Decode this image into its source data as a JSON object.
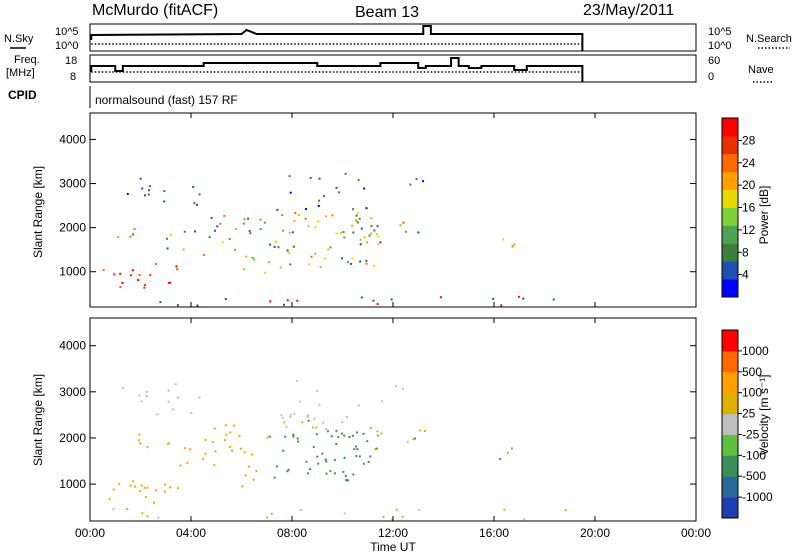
{
  "header": {
    "station": "McMurdo (fitACF)",
    "beam": "Beam 13",
    "date": "23/May/2011"
  },
  "nsky_panel": {
    "left_label": "N.Sky",
    "right_label": "N.Search",
    "left_ticks": [
      "10^5",
      "10^0"
    ],
    "right_ticks": [
      "10^5",
      "10^0"
    ]
  },
  "freq_panel": {
    "left_label_1": "Freq.",
    "left_label_2": "[MHz]",
    "right_label": "Nave",
    "left_ticks": [
      "18",
      "8"
    ],
    "right_ticks": [
      "60",
      "0"
    ]
  },
  "cpid": {
    "label": "CPID",
    "value": "normalsound (fast) 157 RF"
  },
  "colors": {
    "power": [
      "#0000ff",
      "#1f4fb0",
      "#3b7f3b",
      "#4fa24f",
      "#7fd13b",
      "#e8d800",
      "#ff9f00",
      "#ff6a00",
      "#e83000",
      "#ff0000"
    ],
    "velocity": [
      "#1f3fb0",
      "#2a6a9a",
      "#3b8f5a",
      "#5fbf3f",
      "#bfbfbf",
      "#e0b000",
      "#ff9f00",
      "#ff6a00",
      "#ff0000"
    ]
  },
  "chart_data": [
    {
      "type": "heatmap",
      "name": "power",
      "ylabel": "Slant Range [km]",
      "yticks": [
        "4000",
        "3000",
        "2000",
        "1000"
      ],
      "colorbar_label": "Power [dB]",
      "colorbar_ticks": [
        "28",
        "24",
        "20",
        "16",
        "12",
        "8",
        "4"
      ],
      "ylim": [
        200,
        4600
      ],
      "clim": [
        0,
        32
      ]
    },
    {
      "type": "heatmap",
      "name": "velocity",
      "ylabel": "Slant Range [km]",
      "yticks": [
        "4000",
        "3000",
        "2000",
        "1000"
      ],
      "colorbar_label": "Velocity [m s⁻¹]",
      "colorbar_ticks": [
        "1000",
        "500",
        "100",
        "25",
        "-25",
        "-100",
        "-500",
        "-1000"
      ],
      "ylim": [
        200,
        4600
      ]
    }
  ],
  "xaxis": {
    "ticks": [
      "00:00",
      "04:00",
      "08:00",
      "12:00",
      "16:00",
      "20:00",
      "00:00"
    ],
    "label": "Time UT"
  }
}
